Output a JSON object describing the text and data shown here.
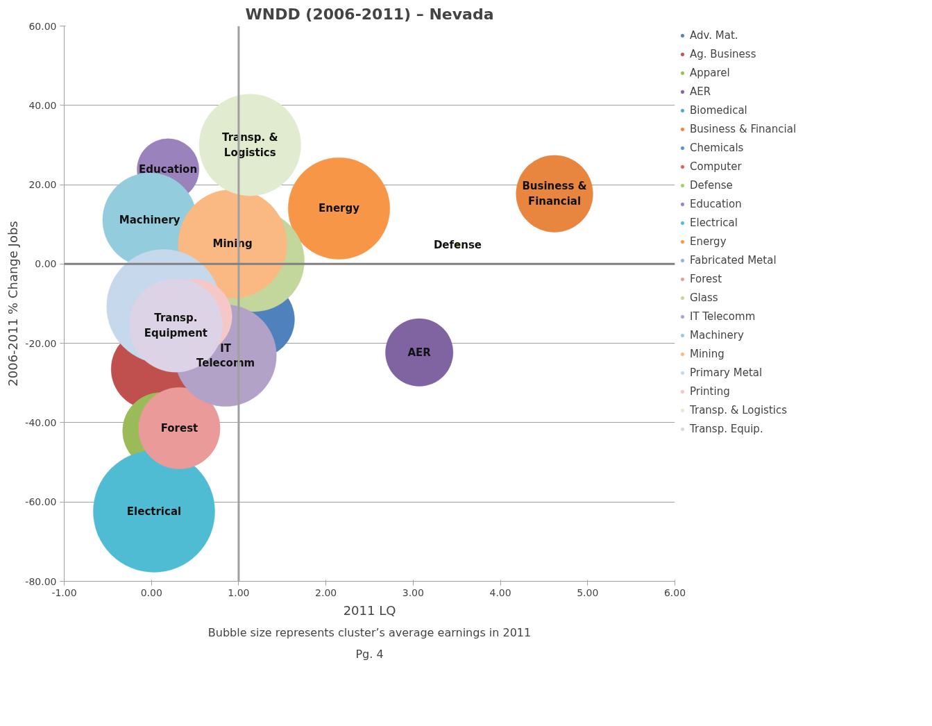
{
  "chart_data": {
    "type": "bubble",
    "title": "WNDD (2006-2011) – Nevada",
    "xlabel": "2011 LQ",
    "ylabel": "2006-2011 % Change Jobs",
    "xlim": [
      -1,
      6
    ],
    "ylim": [
      -80,
      60
    ],
    "xticks": [
      {
        "value": -1,
        "label": "-1.00"
      },
      {
        "value": 0,
        "label": "0.00"
      },
      {
        "value": 1,
        "label": "1.00"
      },
      {
        "value": 2,
        "label": "2.00"
      },
      {
        "value": 3,
        "label": "3.00"
      },
      {
        "value": 4,
        "label": "4.00"
      },
      {
        "value": 5,
        "label": "5.00"
      },
      {
        "value": 6,
        "label": "6.00"
      }
    ],
    "yticks": [
      {
        "value": -80,
        "label": "-80.00"
      },
      {
        "value": -60,
        "label": "-60.00"
      },
      {
        "value": -40,
        "label": "-40.00"
      },
      {
        "value": -20,
        "label": "-20.00"
      },
      {
        "value": 0,
        "label": "0.00"
      },
      {
        "value": 20,
        "label": "20.00"
      },
      {
        "value": 40,
        "label": "40.00"
      },
      {
        "value": 60,
        "label": "60.00"
      }
    ],
    "grid": "y",
    "legend": "right",
    "ref_lines": [
      {
        "axis": "x",
        "value": 1,
        "label": null,
        "color": "#a0a0a0"
      },
      {
        "axis": "y",
        "value": 0,
        "label": null,
        "color": "#808080"
      }
    ],
    "series": [
      {
        "name": "Adv. Mat.",
        "color": "#4f81bd",
        "x": [
          1.2
        ],
        "values": [
          -14.0
        ],
        "sizes": [
          0.4
        ]
      },
      {
        "name": "Ag. Business",
        "color": "#c0504d",
        "x": [
          0.0
        ],
        "values": [
          -26.5
        ],
        "sizes": [
          0.44
        ]
      },
      {
        "name": "Apparel",
        "color": "#9bbb59",
        "x": [
          0.11
        ],
        "values": [
          -42.1
        ],
        "sizes": [
          0.4
        ]
      },
      {
        "name": "AER",
        "color": "#8064a2",
        "x": [
          3.07
        ],
        "values": [
          -22.3
        ],
        "sizes": [
          0.31
        ]
      },
      {
        "name": "Biomedical",
        "color": "#4bacc6",
        "x": [
          null
        ],
        "values": [
          null
        ],
        "sizes": [
          null
        ]
      },
      {
        "name": "Business & Financial",
        "color": "#e8853f",
        "x": [
          4.62
        ],
        "values": [
          17.7
        ],
        "sizes": [
          0.4
        ]
      },
      {
        "name": "Chemicals",
        "color": "#5b8fd0",
        "x": [
          null
        ],
        "values": [
          null
        ],
        "sizes": [
          null
        ]
      },
      {
        "name": "Computer",
        "color": "#e0605c",
        "x": [
          null
        ],
        "values": [
          null
        ],
        "sizes": [
          null
        ]
      },
      {
        "name": "Defense",
        "color": "#a8cc6c",
        "x": [
          3.51
        ],
        "values": [
          4.8
        ],
        "sizes": [
          0.002
        ]
      },
      {
        "name": "Education",
        "color": "#9a82bd",
        "x": [
          0.19
        ],
        "values": [
          23.8
        ],
        "sizes": [
          0.26
        ]
      },
      {
        "name": "Electrical",
        "color": "#4fbcd4",
        "x": [
          0.03
        ],
        "values": [
          -62.4
        ],
        "sizes": [
          1.0
        ]
      },
      {
        "name": "Energy",
        "color": "#f79646",
        "x": [
          2.15
        ],
        "values": [
          14.0
        ],
        "sizes": [
          0.7
        ]
      },
      {
        "name": "Fabricated Metal",
        "color": "#95b3d7",
        "x": [
          null
        ],
        "values": [
          null
        ],
        "sizes": [
          null
        ]
      },
      {
        "name": "Forest",
        "color": "#eb9a9a",
        "x": [
          0.32
        ],
        "values": [
          -41.4
        ],
        "sizes": [
          0.45
        ]
      },
      {
        "name": "Glass",
        "color": "#c3d69b",
        "x": [
          1.17
        ],
        "values": [
          0.8
        ],
        "sizes": [
          0.7
        ]
      },
      {
        "name": "IT Telecomm",
        "color": "#b3a2c7",
        "x": [
          0.85
        ],
        "values": [
          -23.1
        ],
        "sizes": [
          0.7
        ]
      },
      {
        "name": "Machinery",
        "color": "#93cddd",
        "x": [
          -0.02
        ],
        "values": [
          11.1
        ],
        "sizes": [
          0.6
        ]
      },
      {
        "name": "Mining",
        "color": "#fab883",
        "x": [
          0.93
        ],
        "values": [
          5.1
        ],
        "sizes": [
          0.8
        ]
      },
      {
        "name": "Primary Metal",
        "color": "#c6d9ec",
        "x": [
          0.14
        ],
        "values": [
          -10.7
        ],
        "sizes": [
          0.88
        ]
      },
      {
        "name": "Printing",
        "color": "#f5c7c7",
        "x": [
          0.5
        ],
        "values": [
          -13.2
        ],
        "sizes": [
          0.37
        ]
      },
      {
        "name": "Transp. & Logistics",
        "color": "#e0ebcf",
        "x": [
          1.13
        ],
        "values": [
          30.0
        ],
        "sizes": [
          0.7
        ]
      },
      {
        "name": "Transp. Equip.",
        "color": "#dcd4e6",
        "x": [
          0.28
        ],
        "values": [
          -15.5
        ],
        "sizes": [
          0.59
        ]
      }
    ],
    "annotations": [
      {
        "text": "Transp. &\nLogistics",
        "x": 1.13,
        "y": 30.0
      },
      {
        "text": "Education",
        "x": 0.19,
        "y": 23.8
      },
      {
        "text": "Machinery",
        "x": -0.02,
        "y": 11.1
      },
      {
        "text": "Mining",
        "x": 0.93,
        "y": 5.1
      },
      {
        "text": "Energy",
        "x": 2.15,
        "y": 14.0
      },
      {
        "text": "Business &\nFinancial",
        "x": 4.62,
        "y": 17.7
      },
      {
        "text": "Defense",
        "x": 3.51,
        "y": 4.8
      },
      {
        "text": "Transp.\nEquipment",
        "x": 0.28,
        "y": -15.5
      },
      {
        "text": "IT\nTelecomm",
        "x": 0.85,
        "y": -23.1
      },
      {
        "text": "AER",
        "x": 3.07,
        "y": -22.3
      },
      {
        "text": "Forest",
        "x": 0.32,
        "y": -41.4
      },
      {
        "text": "Electrical",
        "x": 0.03,
        "y": -62.4
      },
      "Bubble size represents cluster’s average earnings in 2011",
      "Pg. 4"
    ]
  }
}
